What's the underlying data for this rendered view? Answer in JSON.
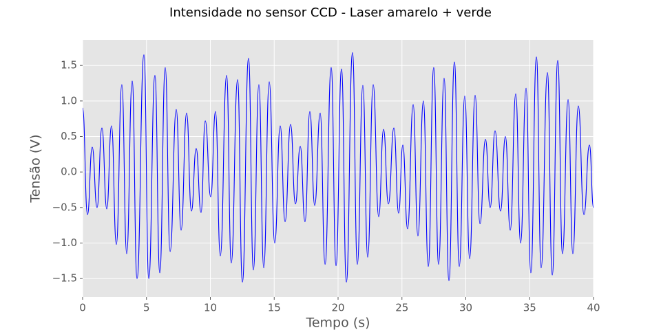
{
  "chart_data": {
    "type": "line",
    "title": "Intensidade no sensor CCD - Laser amarelo + verde",
    "x_label": "Tempo (s)",
    "y_label": "Tensão (V)",
    "xlim": [
      0,
      40
    ],
    "ylim": [
      -1.76,
      1.86
    ],
    "xticks": [
      0,
      5,
      10,
      15,
      20,
      25,
      30,
      35,
      40
    ],
    "yticks": [
      {
        "value": -1.5,
        "label": "−1.5"
      },
      {
        "value": -1.0,
        "label": "−1.0"
      },
      {
        "value": -0.5,
        "label": "−0.5"
      },
      {
        "value": 0,
        "label": "0.0"
      },
      0.5,
      {
        "value": 1.0,
        "label": "1.0"
      },
      1.5
    ],
    "grid": true,
    "series": [
      {
        "color": "#0000ff",
        "x": [
          0,
          0.38,
          0.75,
          1.13,
          1.51,
          1.89,
          2.26,
          2.64,
          3.07,
          3.45,
          3.88,
          4.26,
          4.8,
          5.18,
          5.66,
          6.04,
          6.47,
          6.85,
          7.33,
          7.71,
          8.14,
          8.52,
          8.89,
          9.27,
          9.6,
          10.03,
          10.4,
          10.78,
          11.27,
          11.64,
          12.13,
          12.51,
          12.99,
          13.37,
          13.8,
          14.18,
          14.61,
          15.04,
          15.47,
          15.85,
          16.28,
          16.66,
          17.04,
          17.41,
          17.79,
          18.17,
          18.6,
          18.98,
          19.46,
          19.84,
          20.27,
          20.65,
          21.13,
          21.51,
          21.94,
          22.32,
          22.75,
          23.18,
          23.56,
          23.94,
          24.37,
          24.74,
          25.07,
          25.44,
          25.88,
          26.25,
          26.68,
          27.06,
          27.49,
          27.87,
          28.3,
          28.68,
          29.11,
          29.49,
          29.92,
          30.3,
          30.73,
          31.11,
          31.54,
          31.91,
          32.29,
          32.72,
          33.1,
          33.48,
          33.91,
          34.29,
          34.72,
          35.09,
          35.53,
          35.9,
          36.39,
          36.77,
          37.2,
          37.57,
          38.01,
          38.38,
          38.81,
          39.25,
          39.68,
          40
        ],
        "values": [
          0.9,
          -0.6,
          0.35,
          -0.5,
          0.62,
          -0.52,
          0.65,
          -1.02,
          1.23,
          -1.15,
          1.28,
          -1.5,
          1.65,
          -1.5,
          1.36,
          -1.42,
          1.47,
          -1.12,
          0.88,
          -0.82,
          0.83,
          -0.55,
          0.33,
          -0.57,
          0.72,
          -0.35,
          0.85,
          -1.18,
          1.36,
          -1.28,
          1.3,
          -1.55,
          1.6,
          -1.38,
          1.23,
          -1.35,
          1.27,
          -1.0,
          0.65,
          -0.7,
          0.67,
          -0.45,
          0.36,
          -0.7,
          0.85,
          -0.47,
          0.83,
          -1.3,
          1.47,
          -1.32,
          1.45,
          -1.55,
          1.68,
          -1.3,
          1.22,
          -1.2,
          1.23,
          -0.63,
          0.6,
          -0.45,
          0.62,
          -0.58,
          0.38,
          -0.8,
          0.95,
          -0.9,
          1.0,
          -1.33,
          1.47,
          -1.3,
          1.32,
          -1.53,
          1.55,
          -1.33,
          1.07,
          -1.22,
          1.08,
          -0.73,
          0.46,
          -0.5,
          0.58,
          -0.55,
          0.5,
          -0.82,
          1.1,
          -1.0,
          1.18,
          -1.42,
          1.62,
          -1.35,
          1.4,
          -1.45,
          1.57,
          -1.15,
          1.02,
          -1.15,
          0.93,
          -0.6,
          0.38,
          -0.5
        ]
      }
    ]
  }
}
